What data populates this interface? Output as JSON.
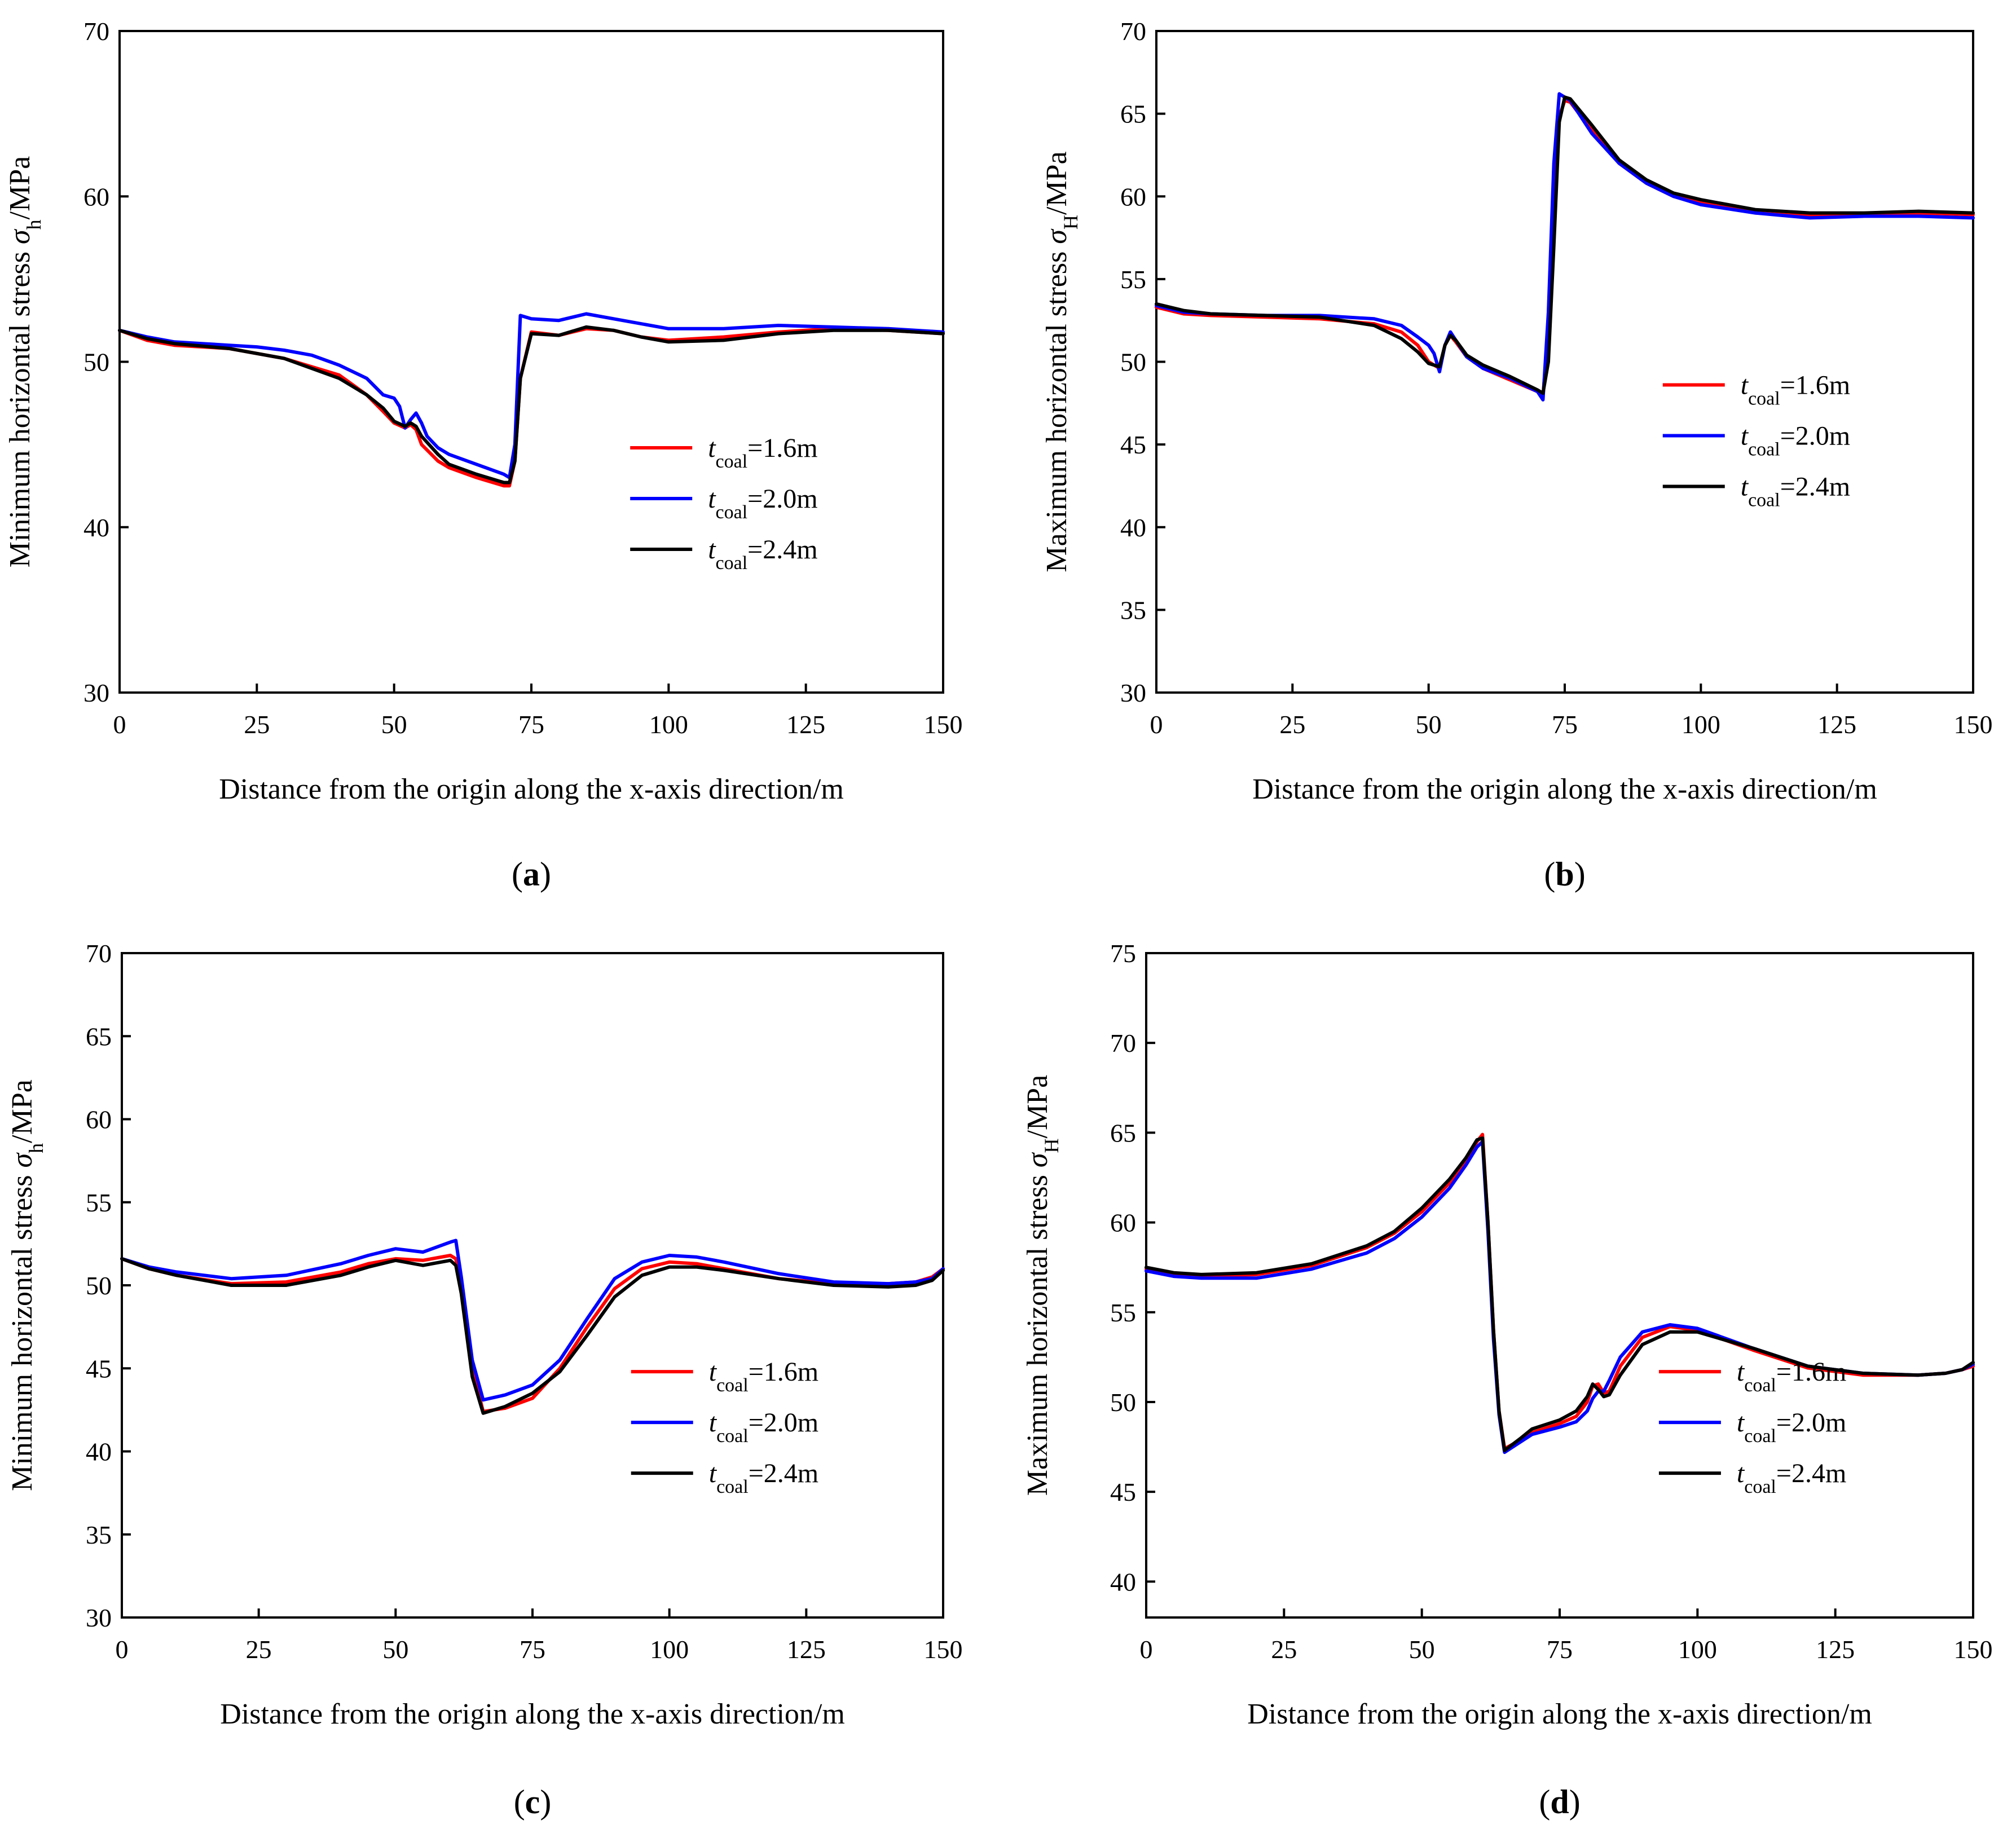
{
  "figure": {
    "series_colors": [
      "#ff0000",
      "#0000ff",
      "#000000"
    ]
  },
  "chart_data": [
    {
      "type": "line",
      "panel": "a",
      "caption": "(a)",
      "caption_letter": "a",
      "title": "",
      "xlabel": "Distance from the origin along the x-axis direction/m",
      "ylabel": "Minimum horizontal stress σh/MPa",
      "ylabel_parts": {
        "prefix": "Minimum horizontal stress ",
        "symbol": "σ",
        "sub": "h",
        "suffix": "/MPa"
      },
      "xlim": [
        0,
        150
      ],
      "ylim": [
        30,
        70
      ],
      "xticks": [
        0,
        25,
        50,
        75,
        100,
        125,
        150
      ],
      "yticks": [
        30,
        40,
        50,
        60,
        70
      ],
      "legend_position": "bottom-right",
      "series": [
        {
          "name": "tcoal=1.6m",
          "legend": {
            "t": "t",
            "sub": "coal",
            "value": "=1.6m"
          },
          "color": "#ff0000",
          "x": [
            0,
            5,
            10,
            20,
            30,
            40,
            45,
            48,
            50,
            52,
            53,
            54,
            55,
            58,
            60,
            65,
            70,
            71,
            72,
            73,
            75,
            80,
            85,
            90,
            95,
            100,
            110,
            120,
            130,
            140,
            150
          ],
          "y": [
            51.9,
            51.3,
            51.0,
            50.8,
            50.2,
            49.2,
            48.0,
            47.0,
            46.3,
            46.0,
            46.2,
            45.9,
            45.0,
            44.0,
            43.6,
            43.0,
            42.5,
            42.5,
            44.0,
            49.0,
            51.8,
            51.6,
            52.0,
            51.9,
            51.5,
            51.3,
            51.5,
            51.8,
            52.0,
            51.9,
            51.7
          ]
        },
        {
          "name": "tcoal=2.0m",
          "legend": {
            "t": "t",
            "sub": "coal",
            "value": "=2.0m"
          },
          "color": "#0000ff",
          "x": [
            0,
            5,
            10,
            15,
            20,
            25,
            30,
            35,
            40,
            45,
            48,
            50,
            51,
            52,
            53,
            54,
            55,
            56,
            58,
            60,
            65,
            70,
            71,
            72,
            73,
            75,
            80,
            85,
            90,
            100,
            110,
            120,
            130,
            140,
            150
          ],
          "y": [
            51.9,
            51.5,
            51.2,
            51.1,
            51.0,
            50.9,
            50.7,
            50.4,
            49.8,
            49.0,
            48.0,
            47.8,
            47.3,
            46.0,
            46.5,
            46.9,
            46.3,
            45.5,
            44.8,
            44.4,
            43.8,
            43.2,
            43.0,
            45.0,
            52.8,
            52.6,
            52.5,
            52.9,
            52.6,
            52.0,
            52.0,
            52.2,
            52.1,
            52.0,
            51.8
          ]
        },
        {
          "name": "tcoal=2.4m",
          "legend": {
            "t": "t",
            "sub": "coal",
            "value": "=2.4m"
          },
          "color": "#000000",
          "x": [
            0,
            5,
            10,
            20,
            30,
            40,
            45,
            48,
            50,
            52,
            53,
            54,
            55,
            58,
            60,
            65,
            70,
            71,
            72,
            73,
            75,
            80,
            85,
            90,
            95,
            100,
            110,
            120,
            130,
            140,
            150
          ],
          "y": [
            51.9,
            51.4,
            51.1,
            50.8,
            50.2,
            49.0,
            48.0,
            47.2,
            46.4,
            46.1,
            46.3,
            46.1,
            45.5,
            44.4,
            43.8,
            43.2,
            42.7,
            42.7,
            44.0,
            49.0,
            51.7,
            51.6,
            52.1,
            51.9,
            51.5,
            51.2,
            51.3,
            51.7,
            51.9,
            51.9,
            51.7
          ]
        }
      ]
    },
    {
      "type": "line",
      "panel": "b",
      "caption": "(b)",
      "caption_letter": "b",
      "title": "",
      "xlabel": "Distance from the origin along the x-axis direction/m",
      "ylabel": "Maximum horizontal stress σH/MPa",
      "ylabel_parts": {
        "prefix": "Maximum horizontal stress ",
        "symbol": "σ",
        "sub": "H",
        "suffix": "/MPa"
      },
      "xlim": [
        0,
        150
      ],
      "ylim": [
        30,
        70
      ],
      "xticks": [
        0,
        25,
        50,
        75,
        100,
        125,
        150
      ],
      "yticks": [
        30,
        35,
        40,
        45,
        50,
        55,
        60,
        65,
        70
      ],
      "legend_position": "center-right",
      "series": [
        {
          "name": "tcoal=1.6m",
          "legend": {
            "t": "t",
            "sub": "coal",
            "value": "=1.6m"
          },
          "color": "#ff0000",
          "x": [
            0,
            5,
            10,
            20,
            30,
            40,
            45,
            48,
            50,
            52,
            53,
            54,
            55,
            57,
            60,
            65,
            70,
            71,
            72,
            73,
            74,
            75,
            76,
            80,
            85,
            90,
            95,
            100,
            110,
            120,
            130,
            140,
            150
          ],
          "y": [
            53.3,
            52.9,
            52.8,
            52.7,
            52.6,
            52.3,
            51.8,
            51.0,
            50.0,
            49.6,
            51.0,
            51.6,
            51.2,
            50.3,
            49.6,
            48.9,
            48.2,
            47.9,
            52.0,
            60.0,
            64.8,
            65.8,
            65.7,
            64.0,
            62.0,
            60.8,
            60.0,
            59.6,
            59.0,
            58.8,
            58.9,
            59.0,
            58.9
          ]
        },
        {
          "name": "tcoal=2.0m",
          "legend": {
            "t": "t",
            "sub": "coal",
            "value": "=2.0m"
          },
          "color": "#0000ff",
          "x": [
            0,
            5,
            10,
            20,
            30,
            40,
            45,
            48,
            50,
            51,
            52,
            53,
            54,
            55,
            57,
            60,
            65,
            70,
            71,
            72,
            73,
            74,
            75,
            76,
            80,
            85,
            90,
            95,
            100,
            110,
            120,
            130,
            140,
            150
          ],
          "y": [
            53.4,
            53.0,
            52.9,
            52.8,
            52.8,
            52.6,
            52.2,
            51.5,
            51.0,
            50.5,
            49.4,
            51.0,
            51.8,
            51.3,
            50.3,
            49.6,
            49.0,
            48.2,
            47.7,
            53.0,
            62.0,
            66.2,
            66.0,
            65.8,
            63.8,
            62.0,
            60.8,
            60.0,
            59.5,
            59.0,
            58.7,
            58.8,
            58.8,
            58.7
          ]
        },
        {
          "name": "tcoal=2.4m",
          "legend": {
            "t": "t",
            "sub": "coal",
            "value": "=2.4m"
          },
          "color": "#000000",
          "x": [
            0,
            5,
            10,
            20,
            30,
            40,
            45,
            48,
            50,
            52,
            53,
            54,
            55,
            57,
            60,
            65,
            70,
            71,
            72,
            73,
            74,
            75,
            76,
            80,
            85,
            90,
            95,
            100,
            110,
            120,
            130,
            140,
            150
          ],
          "y": [
            53.5,
            53.1,
            52.9,
            52.8,
            52.7,
            52.2,
            51.4,
            50.6,
            49.9,
            49.7,
            51.0,
            51.6,
            51.3,
            50.4,
            49.8,
            49.1,
            48.3,
            48.1,
            50.0,
            57.0,
            64.5,
            66.0,
            65.9,
            64.3,
            62.2,
            61.0,
            60.2,
            59.8,
            59.2,
            59.0,
            59.0,
            59.1,
            59.0
          ]
        }
      ]
    },
    {
      "type": "line",
      "panel": "c",
      "caption": "(c)",
      "caption_letter": "c",
      "title": "",
      "xlabel": "Distance from the origin along the x-axis direction/m",
      "ylabel": "Minimum horizontal stress σh/MPa",
      "ylabel_parts": {
        "prefix": "Minimum horizontal stress ",
        "symbol": "σ",
        "sub": "h",
        "suffix": "/MPa"
      },
      "xlim": [
        0,
        150
      ],
      "ylim": [
        30,
        70
      ],
      "xticks": [
        0,
        25,
        50,
        75,
        100,
        125,
        150
      ],
      "yticks": [
        30,
        35,
        40,
        45,
        50,
        55,
        60,
        65,
        70
      ],
      "legend_position": "bottom-right",
      "series": [
        {
          "name": "tcoal=1.6m",
          "legend": {
            "t": "t",
            "sub": "coal",
            "value": "=1.6m"
          },
          "color": "#ff0000",
          "x": [
            0,
            5,
            10,
            20,
            30,
            40,
            45,
            50,
            55,
            60,
            61,
            62,
            64,
            66,
            70,
            75,
            80,
            85,
            90,
            95,
            100,
            105,
            110,
            120,
            130,
            140,
            145,
            148,
            150
          ],
          "y": [
            51.6,
            51.0,
            50.6,
            50.1,
            50.2,
            50.8,
            51.3,
            51.6,
            51.5,
            51.8,
            51.6,
            50.0,
            45.0,
            42.4,
            42.6,
            43.2,
            45.0,
            47.5,
            49.8,
            51.0,
            51.4,
            51.3,
            51.0,
            50.4,
            50.1,
            50.1,
            50.2,
            50.5,
            51.0
          ]
        },
        {
          "name": "tcoal=2.0m",
          "legend": {
            "t": "t",
            "sub": "coal",
            "value": "=2.0m"
          },
          "color": "#0000ff",
          "x": [
            0,
            5,
            10,
            20,
            30,
            40,
            45,
            50,
            55,
            60,
            61,
            62,
            64,
            66,
            70,
            75,
            80,
            85,
            90,
            95,
            100,
            105,
            110,
            120,
            130,
            140,
            145,
            148,
            150
          ],
          "y": [
            51.6,
            51.1,
            50.8,
            50.4,
            50.6,
            51.3,
            51.8,
            52.2,
            52.0,
            52.6,
            52.7,
            50.5,
            45.5,
            43.1,
            43.4,
            44.0,
            45.5,
            48.0,
            50.4,
            51.4,
            51.8,
            51.7,
            51.4,
            50.7,
            50.2,
            50.1,
            50.2,
            50.4,
            51.0
          ]
        },
        {
          "name": "tcoal=2.4m",
          "legend": {
            "t": "t",
            "sub": "coal",
            "value": "=2.4m"
          },
          "color": "#000000",
          "x": [
            0,
            5,
            10,
            20,
            30,
            40,
            45,
            50,
            55,
            60,
            61,
            62,
            64,
            66,
            70,
            75,
            80,
            85,
            90,
            95,
            100,
            105,
            110,
            120,
            130,
            140,
            145,
            148,
            150
          ],
          "y": [
            51.6,
            51.0,
            50.6,
            50.0,
            50.0,
            50.6,
            51.1,
            51.5,
            51.2,
            51.5,
            51.2,
            49.5,
            44.5,
            42.3,
            42.7,
            43.5,
            44.8,
            47.0,
            49.3,
            50.6,
            51.1,
            51.1,
            50.9,
            50.4,
            50.0,
            49.9,
            50.0,
            50.3,
            50.9
          ]
        }
      ]
    },
    {
      "type": "line",
      "panel": "d",
      "caption": "(d)",
      "caption_letter": "d",
      "title": "",
      "xlabel": "Distance from the origin along the x-axis direction/m",
      "ylabel": "Maximum horizontal stress σH/MPa",
      "ylabel_parts": {
        "prefix": "Maximum horizontal stress ",
        "symbol": "σ",
        "sub": "H",
        "suffix": "/MPa"
      },
      "xlim": [
        0,
        150
      ],
      "ylim": [
        38,
        75
      ],
      "xticks": [
        0,
        25,
        50,
        75,
        100,
        125,
        150
      ],
      "yticks": [
        40,
        45,
        50,
        55,
        60,
        65,
        70,
        75
      ],
      "legend_position": "bottom-right",
      "series": [
        {
          "name": "tcoal=1.6m",
          "legend": {
            "t": "t",
            "sub": "coal",
            "value": "=1.6m"
          },
          "color": "#ff0000",
          "x": [
            0,
            5,
            10,
            20,
            30,
            40,
            45,
            50,
            55,
            58,
            60,
            61,
            62,
            63,
            64,
            65,
            68,
            70,
            75,
            78,
            80,
            81,
            82,
            83,
            84,
            86,
            90,
            95,
            100,
            110,
            120,
            130,
            140,
            145,
            148,
            150
          ],
          "y": [
            57.4,
            57.1,
            57.0,
            57.1,
            57.6,
            58.6,
            59.4,
            60.6,
            62.2,
            63.5,
            64.5,
            64.9,
            60.0,
            54.0,
            49.5,
            47.4,
            47.9,
            48.3,
            48.8,
            49.2,
            50.0,
            50.9,
            51.0,
            50.5,
            50.6,
            52.0,
            53.6,
            54.2,
            54.0,
            52.9,
            51.9,
            51.5,
            51.5,
            51.6,
            51.8,
            52.0
          ]
        },
        {
          "name": "tcoal=2.0m",
          "legend": {
            "t": "t",
            "sub": "coal",
            "value": "=2.0m"
          },
          "color": "#0000ff",
          "x": [
            0,
            5,
            10,
            20,
            30,
            40,
            45,
            50,
            55,
            58,
            60,
            61,
            62,
            63,
            64,
            65,
            68,
            70,
            75,
            78,
            80,
            81,
            82,
            83,
            84,
            86,
            90,
            95,
            100,
            110,
            120,
            130,
            140,
            145,
            148,
            150
          ],
          "y": [
            57.3,
            57.0,
            56.9,
            56.9,
            57.4,
            58.3,
            59.1,
            60.3,
            61.9,
            63.2,
            64.2,
            64.5,
            59.5,
            53.5,
            49.3,
            47.2,
            47.8,
            48.2,
            48.6,
            48.9,
            49.5,
            50.2,
            50.6,
            50.6,
            51.2,
            52.5,
            53.9,
            54.3,
            54.1,
            53.0,
            52.0,
            51.6,
            51.5,
            51.6,
            51.8,
            52.1
          ]
        },
        {
          "name": "tcoal=2.4m",
          "legend": {
            "t": "t",
            "sub": "coal",
            "value": "=2.4m"
          },
          "color": "#000000",
          "x": [
            0,
            5,
            10,
            20,
            30,
            40,
            45,
            50,
            55,
            58,
            60,
            61,
            62,
            63,
            64,
            65,
            68,
            70,
            75,
            78,
            80,
            81,
            82,
            83,
            84,
            86,
            90,
            95,
            100,
            110,
            120,
            130,
            140,
            145,
            148,
            150
          ],
          "y": [
            57.5,
            57.2,
            57.1,
            57.2,
            57.7,
            58.7,
            59.5,
            60.8,
            62.4,
            63.6,
            64.6,
            64.7,
            60.0,
            54.0,
            49.5,
            47.3,
            48.0,
            48.5,
            49.0,
            49.5,
            50.3,
            51.0,
            50.7,
            50.3,
            50.4,
            51.5,
            53.2,
            53.9,
            53.9,
            53.0,
            52.0,
            51.6,
            51.5,
            51.6,
            51.8,
            52.2
          ]
        }
      ]
    }
  ]
}
